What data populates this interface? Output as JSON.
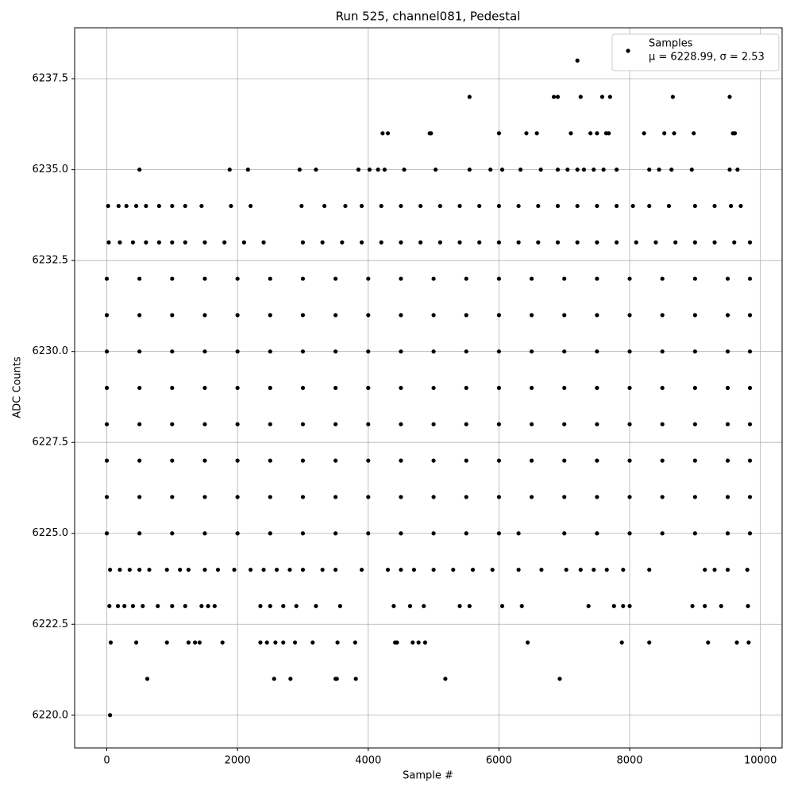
{
  "chart_data": {
    "type": "scatter",
    "title": "Run 525, channel081, Pedestal",
    "x_label": "Sample #",
    "y_label": "ADC Counts",
    "xlim": [
      -492,
      10332
    ],
    "ylim": [
      6219.1,
      6238.9
    ],
    "xticks": [
      0,
      2000,
      4000,
      6000,
      8000,
      10000
    ],
    "yticks": [
      {
        "value": 6220,
        "label": "6220.0"
      },
      {
        "value": 6222.5,
        "label": "6222.5"
      },
      {
        "value": 6225,
        "label": "6225.0"
      },
      {
        "value": 6227.5,
        "label": "6227.5"
      },
      {
        "value": 6230,
        "label": "6230.0"
      },
      {
        "value": 6232.5,
        "label": "6232.5"
      },
      {
        "value": 6235,
        "label": "6235.0"
      },
      {
        "value": 6237.5,
        "label": "6237.5"
      }
    ],
    "grid": true,
    "legend": "upper right",
    "legend_note": "μ = 6228.99, σ = 2.53",
    "series": [
      {
        "name": "Samples",
        "color": "#000000",
        "x": [
          50,
          620,
          2560,
          2810,
          3500,
          3520,
          3810,
          5180,
          6930,
          60,
          450,
          920,
          1250,
          1350,
          1420,
          1770,
          2350,
          2450,
          2580,
          2700,
          2880,
          3150,
          3530,
          3800,
          4410,
          4440,
          4680,
          4770,
          4870,
          6440,
          7880,
          8300,
          9200,
          9640,
          9820,
          40,
          170,
          270,
          400,
          550,
          780,
          1000,
          1200,
          1450,
          1550,
          1650,
          2350,
          2500,
          2700,
          2900,
          3200,
          3570,
          4390,
          4640,
          4850,
          5400,
          5550,
          6050,
          6350,
          7370,
          7760,
          7900,
          8000,
          8960,
          9150,
          9400,
          9810,
          50,
          200,
          350,
          500,
          650,
          920,
          1120,
          1250,
          1500,
          1700,
          1950,
          2200,
          2400,
          2600,
          2800,
          3000,
          3300,
          3500,
          3900,
          4300,
          4500,
          4700,
          5000,
          5300,
          5600,
          5900,
          6300,
          6650,
          7030,
          7250,
          7450,
          7650,
          7900,
          8300,
          9150,
          9300,
          9500,
          9800,
          0,
          500,
          1000,
          1500,
          2000,
          2500,
          3000,
          3500,
          4000,
          4500,
          5000,
          5500,
          6000,
          6300,
          7000,
          7500,
          8000,
          8500,
          9000,
          9500,
          9840,
          0,
          500,
          1000,
          1500,
          2000,
          2500,
          3000,
          3500,
          4000,
          4500,
          5000,
          5500,
          6000,
          6500,
          7000,
          7500,
          8000,
          8500,
          9000,
          9500,
          9840,
          0,
          500,
          1000,
          1500,
          2000,
          2500,
          3000,
          3500,
          4000,
          4500,
          5000,
          5500,
          6000,
          6500,
          7000,
          7500,
          8000,
          8500,
          9000,
          9500,
          9840,
          0,
          500,
          1000,
          1500,
          2000,
          2500,
          3000,
          3500,
          4000,
          4500,
          5000,
          5500,
          6000,
          6500,
          7000,
          7500,
          8000,
          8500,
          9000,
          9500,
          9840,
          0,
          500,
          1000,
          1500,
          2000,
          2500,
          3000,
          3500,
          4000,
          4500,
          5000,
          5500,
          6000,
          6500,
          7000,
          7500,
          8000,
          8500,
          9000,
          9500,
          9840,
          0,
          500,
          1000,
          1500,
          2000,
          2500,
          3000,
          3500,
          4000,
          4500,
          5000,
          5500,
          6000,
          6500,
          7000,
          7500,
          8000,
          8500,
          9000,
          9500,
          9840,
          0,
          500,
          1000,
          1500,
          2000,
          2500,
          3000,
          3500,
          4000,
          4500,
          5000,
          5500,
          6000,
          6500,
          7000,
          7500,
          8000,
          8500,
          9000,
          9500,
          9840,
          0,
          500,
          1000,
          1500,
          2000,
          2500,
          3000,
          3500,
          4000,
          4500,
          5000,
          5500,
          6000,
          6500,
          7000,
          7500,
          8000,
          8500,
          9000,
          9500,
          9840,
          30,
          200,
          400,
          600,
          800,
          1000,
          1200,
          1500,
          1800,
          2100,
          2400,
          3000,
          3300,
          3600,
          3900,
          4200,
          4500,
          4800,
          5100,
          5400,
          5700,
          6000,
          6300,
          6600,
          6900,
          7200,
          7500,
          7800,
          8100,
          8400,
          8700,
          9000,
          9300,
          9600,
          9840,
          20,
          180,
          300,
          450,
          600,
          800,
          1000,
          1200,
          1450,
          1900,
          2200,
          2980,
          3330,
          3650,
          3900,
          4200,
          4500,
          4800,
          5100,
          5400,
          5700,
          6000,
          6300,
          6600,
          6900,
          7200,
          7500,
          7800,
          8050,
          8300,
          8600,
          9000,
          9300,
          9550,
          9700,
          500,
          1880,
          2160,
          2950,
          3200,
          3850,
          4020,
          4150,
          4250,
          4550,
          5030,
          5550,
          5870,
          6050,
          6330,
          6640,
          6900,
          7050,
          7200,
          7300,
          7450,
          7600,
          7800,
          8300,
          8450,
          8640,
          8950,
          9530,
          9650,
          4220,
          4300,
          4940,
          4960,
          6000,
          6420,
          6580,
          7100,
          7400,
          7500,
          7640,
          7680,
          8220,
          8530,
          8680,
          8980,
          9580,
          9610,
          5550,
          6840,
          6900,
          7250,
          7580,
          7700,
          8660,
          9530,
          7200
        ],
        "values": [
          6220,
          6221,
          6221,
          6221,
          6221,
          6221,
          6221,
          6221,
          6221,
          6222,
          6222,
          6222,
          6222,
          6222,
          6222,
          6222,
          6222,
          6222,
          6222,
          6222,
          6222,
          6222,
          6222,
          6222,
          6222,
          6222,
          6222,
          6222,
          6222,
          6222,
          6222,
          6222,
          6222,
          6222,
          6222,
          6223,
          6223,
          6223,
          6223,
          6223,
          6223,
          6223,
          6223,
          6223,
          6223,
          6223,
          6223,
          6223,
          6223,
          6223,
          6223,
          6223,
          6223,
          6223,
          6223,
          6223,
          6223,
          6223,
          6223,
          6223,
          6223,
          6223,
          6223,
          6223,
          6223,
          6223,
          6223,
          6224,
          6224,
          6224,
          6224,
          6224,
          6224,
          6224,
          6224,
          6224,
          6224,
          6224,
          6224,
          6224,
          6224,
          6224,
          6224,
          6224,
          6224,
          6224,
          6224,
          6224,
          6224,
          6224,
          6224,
          6224,
          6224,
          6224,
          6224,
          6224,
          6224,
          6224,
          6224,
          6224,
          6224,
          6224,
          6224,
          6224,
          6224,
          6225,
          6225,
          6225,
          6225,
          6225,
          6225,
          6225,
          6225,
          6225,
          6225,
          6225,
          6225,
          6225,
          6225,
          6225,
          6225,
          6225,
          6225,
          6225,
          6225,
          6225,
          6226,
          6226,
          6226,
          6226,
          6226,
          6226,
          6226,
          6226,
          6226,
          6226,
          6226,
          6226,
          6226,
          6226,
          6226,
          6226,
          6226,
          6226,
          6226,
          6226,
          6226,
          6227,
          6227,
          6227,
          6227,
          6227,
          6227,
          6227,
          6227,
          6227,
          6227,
          6227,
          6227,
          6227,
          6227,
          6227,
          6227,
          6227,
          6227,
          6227,
          6227,
          6227,
          6228,
          6228,
          6228,
          6228,
          6228,
          6228,
          6228,
          6228,
          6228,
          6228,
          6228,
          6228,
          6228,
          6228,
          6228,
          6228,
          6228,
          6228,
          6228,
          6228,
          6228,
          6229,
          6229,
          6229,
          6229,
          6229,
          6229,
          6229,
          6229,
          6229,
          6229,
          6229,
          6229,
          6229,
          6229,
          6229,
          6229,
          6229,
          6229,
          6229,
          6229,
          6229,
          6230,
          6230,
          6230,
          6230,
          6230,
          6230,
          6230,
          6230,
          6230,
          6230,
          6230,
          6230,
          6230,
          6230,
          6230,
          6230,
          6230,
          6230,
          6230,
          6230,
          6230,
          6231,
          6231,
          6231,
          6231,
          6231,
          6231,
          6231,
          6231,
          6231,
          6231,
          6231,
          6231,
          6231,
          6231,
          6231,
          6231,
          6231,
          6231,
          6231,
          6231,
          6231,
          6232,
          6232,
          6232,
          6232,
          6232,
          6232,
          6232,
          6232,
          6232,
          6232,
          6232,
          6232,
          6232,
          6232,
          6232,
          6232,
          6232,
          6232,
          6232,
          6232,
          6232,
          6233,
          6233,
          6233,
          6233,
          6233,
          6233,
          6233,
          6233,
          6233,
          6233,
          6233,
          6233,
          6233,
          6233,
          6233,
          6233,
          6233,
          6233,
          6233,
          6233,
          6233,
          6233,
          6233,
          6233,
          6233,
          6233,
          6233,
          6233,
          6233,
          6233,
          6233,
          6233,
          6233,
          6233,
          6233,
          6234,
          6234,
          6234,
          6234,
          6234,
          6234,
          6234,
          6234,
          6234,
          6234,
          6234,
          6234,
          6234,
          6234,
          6234,
          6234,
          6234,
          6234,
          6234,
          6234,
          6234,
          6234,
          6234,
          6234,
          6234,
          6234,
          6234,
          6234,
          6234,
          6234,
          6234,
          6234,
          6234,
          6234,
          6234,
          6235,
          6235,
          6235,
          6235,
          6235,
          6235,
          6235,
          6235,
          6235,
          6235,
          6235,
          6235,
          6235,
          6235,
          6235,
          6235,
          6235,
          6235,
          6235,
          6235,
          6235,
          6235,
          6235,
          6235,
          6235,
          6235,
          6235,
          6235,
          6235,
          6236,
          6236,
          6236,
          6236,
          6236,
          6236,
          6236,
          6236,
          6236,
          6236,
          6236,
          6236,
          6236,
          6236,
          6236,
          6236,
          6236,
          6236,
          6237,
          6237,
          6237,
          6237,
          6237,
          6237,
          6237,
          6237,
          6238
        ]
      }
    ]
  }
}
